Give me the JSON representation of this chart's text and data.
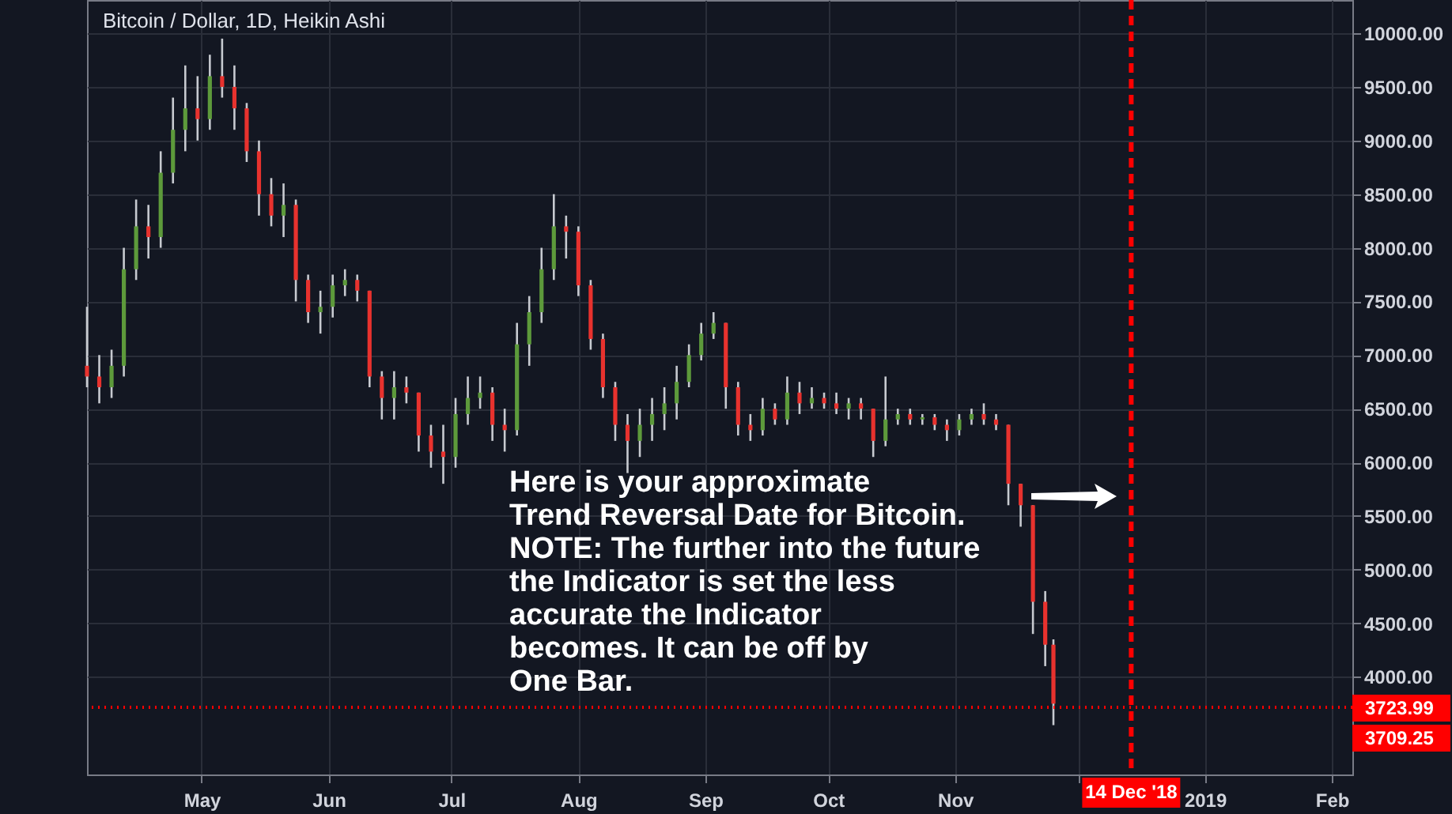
{
  "chart_data": {
    "type": "candlestick",
    "title": "Bitcoin / Dollar, 1D, Heikin Ashi",
    "x": [
      "2018-04-03",
      "2018-04-06",
      "2018-04-09",
      "2018-04-12",
      "2018-04-15",
      "2018-04-18",
      "2018-04-21",
      "2018-04-24",
      "2018-04-27",
      "2018-04-30",
      "2018-05-03",
      "2018-05-06",
      "2018-05-09",
      "2018-05-12",
      "2018-05-15",
      "2018-05-18",
      "2018-05-21",
      "2018-05-24",
      "2018-05-27",
      "2018-05-30",
      "2018-06-02",
      "2018-06-05",
      "2018-06-08",
      "2018-06-11",
      "2018-06-14",
      "2018-06-17",
      "2018-06-20",
      "2018-06-23",
      "2018-06-26",
      "2018-06-29",
      "2018-07-02",
      "2018-07-05",
      "2018-07-08",
      "2018-07-11",
      "2018-07-14",
      "2018-07-17",
      "2018-07-20",
      "2018-07-23",
      "2018-07-26",
      "2018-07-29",
      "2018-08-01",
      "2018-08-04",
      "2018-08-07",
      "2018-08-10",
      "2018-08-13",
      "2018-08-16",
      "2018-08-19",
      "2018-08-22",
      "2018-08-25",
      "2018-08-28",
      "2018-08-31",
      "2018-09-03",
      "2018-09-06",
      "2018-09-09",
      "2018-09-12",
      "2018-09-15",
      "2018-09-18",
      "2018-09-21",
      "2018-09-24",
      "2018-09-27",
      "2018-09-30",
      "2018-10-03",
      "2018-10-06",
      "2018-10-09",
      "2018-10-12",
      "2018-10-15",
      "2018-10-18",
      "2018-10-21",
      "2018-10-24",
      "2018-10-27",
      "2018-10-30",
      "2018-11-02",
      "2018-11-05",
      "2018-11-08",
      "2018-11-11",
      "2018-11-14",
      "2018-11-17",
      "2018-11-20",
      "2018-11-23",
      "2018-11-25"
    ],
    "ohlc": [
      [
        6900,
        7450,
        6700,
        6800
      ],
      [
        6800,
        7000,
        6550,
        6700
      ],
      [
        6700,
        7050,
        6600,
        6900
      ],
      [
        6900,
        8000,
        6800,
        7800
      ],
      [
        7800,
        8450,
        7700,
        8200
      ],
      [
        8200,
        8400,
        7900,
        8100
      ],
      [
        8100,
        8900,
        8000,
        8700
      ],
      [
        8700,
        9400,
        8600,
        9100
      ],
      [
        9100,
        9700,
        8900,
        9300
      ],
      [
        9300,
        9600,
        9000,
        9200
      ],
      [
        9200,
        9800,
        9100,
        9600
      ],
      [
        9600,
        9950,
        9400,
        9500
      ],
      [
        9500,
        9700,
        9100,
        9300
      ],
      [
        9300,
        9350,
        8800,
        8900
      ],
      [
        8900,
        9000,
        8300,
        8500
      ],
      [
        8500,
        8650,
        8200,
        8300
      ],
      [
        8300,
        8600,
        8100,
        8400
      ],
      [
        8400,
        8450,
        7500,
        7700
      ],
      [
        7700,
        7750,
        7300,
        7400
      ],
      [
        7400,
        7600,
        7200,
        7450
      ],
      [
        7450,
        7750,
        7350,
        7650
      ],
      [
        7650,
        7800,
        7550,
        7700
      ],
      [
        7700,
        7750,
        7500,
        7600
      ],
      [
        7600,
        7600,
        6700,
        6800
      ],
      [
        6800,
        6850,
        6400,
        6600
      ],
      [
        6600,
        6850,
        6400,
        6700
      ],
      [
        6700,
        6800,
        6550,
        6650
      ],
      [
        6650,
        6650,
        6100,
        6250
      ],
      [
        6250,
        6350,
        5950,
        6100
      ],
      [
        6100,
        6350,
        5800,
        6050
      ],
      [
        6050,
        6600,
        5950,
        6450
      ],
      [
        6450,
        6800,
        6350,
        6600
      ],
      [
        6600,
        6800,
        6500,
        6650
      ],
      [
        6650,
        6700,
        6200,
        6350
      ],
      [
        6350,
        6500,
        6100,
        6300
      ],
      [
        6300,
        7300,
        6250,
        7100
      ],
      [
        7100,
        7550,
        6900,
        7400
      ],
      [
        7400,
        8000,
        7300,
        7800
      ],
      [
        7800,
        8500,
        7700,
        8200
      ],
      [
        8200,
        8300,
        7900,
        8150
      ],
      [
        8150,
        8200,
        7550,
        7650
      ],
      [
        7650,
        7700,
        7050,
        7150
      ],
      [
        7150,
        7200,
        6600,
        6700
      ],
      [
        6700,
        6750,
        6200,
        6350
      ],
      [
        6350,
        6450,
        5900,
        6200
      ],
      [
        6200,
        6500,
        6050,
        6350
      ],
      [
        6350,
        6600,
        6200,
        6450
      ],
      [
        6450,
        6700,
        6300,
        6550
      ],
      [
        6550,
        6900,
        6400,
        6750
      ],
      [
        6750,
        7100,
        6700,
        7000
      ],
      [
        7000,
        7300,
        6950,
        7200
      ],
      [
        7200,
        7400,
        7150,
        7300
      ],
      [
        7300,
        7300,
        6500,
        6700
      ],
      [
        6700,
        6750,
        6250,
        6350
      ],
      [
        6350,
        6450,
        6200,
        6300
      ],
      [
        6300,
        6600,
        6250,
        6500
      ],
      [
        6500,
        6550,
        6350,
        6400
      ],
      [
        6400,
        6800,
        6350,
        6650
      ],
      [
        6650,
        6750,
        6450,
        6550
      ],
      [
        6550,
        6700,
        6500,
        6600
      ],
      [
        6600,
        6650,
        6500,
        6550
      ],
      [
        6550,
        6650,
        6450,
        6500
      ],
      [
        6500,
        6600,
        6400,
        6550
      ],
      [
        6550,
        6600,
        6400,
        6500
      ],
      [
        6500,
        6500,
        6050,
        6200
      ],
      [
        6200,
        6800,
        6150,
        6400
      ],
      [
        6400,
        6500,
        6350,
        6450
      ],
      [
        6450,
        6500,
        6350,
        6400
      ],
      [
        6400,
        6450,
        6350,
        6420
      ],
      [
        6420,
        6450,
        6300,
        6350
      ],
      [
        6350,
        6400,
        6200,
        6300
      ],
      [
        6300,
        6450,
        6250,
        6400
      ],
      [
        6400,
        6500,
        6350,
        6450
      ],
      [
        6450,
        6550,
        6350,
        6400
      ],
      [
        6400,
        6450,
        6300,
        6350
      ],
      [
        6350,
        6350,
        5600,
        5800
      ],
      [
        5800,
        5800,
        5400,
        5600
      ],
      [
        5600,
        5600,
        4400,
        4700
      ],
      [
        4700,
        4800,
        4100,
        4300
      ],
      [
        4300,
        4350,
        3550,
        3750
      ]
    ],
    "xlim": [
      "2018-04-03",
      "2019-02-06"
    ],
    "xticks": [
      {
        "value": "2018-05-01",
        "label": "May"
      },
      {
        "value": "2018-06-01",
        "label": "Jun"
      },
      {
        "value": "2018-07-01",
        "label": "Jul"
      },
      {
        "value": "2018-08-01",
        "label": "Aug"
      },
      {
        "value": "2018-09-01",
        "label": "Sep"
      },
      {
        "value": "2018-10-01",
        "label": "Oct"
      },
      {
        "value": "2018-11-01",
        "label": "Nov"
      },
      {
        "value": "2018-12-01",
        "label": null
      },
      {
        "value": "2019-01-01",
        "label": "2019"
      },
      {
        "value": "2019-02-01",
        "label": "Feb"
      }
    ],
    "ylim": [
      3090,
      10310
    ],
    "yticks": [
      {
        "value": 4000,
        "label": "4000.00"
      },
      {
        "value": 4500,
        "label": "4500.00"
      },
      {
        "value": 5000,
        "label": "5000.00"
      },
      {
        "value": 5500,
        "label": "5500.00"
      },
      {
        "value": 6000,
        "label": "6000.00"
      },
      {
        "value": 6500,
        "label": "6500.00"
      },
      {
        "value": 7000,
        "label": "7000.00"
      },
      {
        "value": 7500,
        "label": "7500.00"
      },
      {
        "value": 8000,
        "label": "8000.00"
      },
      {
        "value": 8500,
        "label": "8500.00"
      },
      {
        "value": 9000,
        "label": "9000.00"
      },
      {
        "value": 9500,
        "label": "9500.00"
      },
      {
        "value": 10000,
        "label": "10000.00"
      }
    ],
    "grid": true,
    "ref_lines": [
      {
        "axis": "x",
        "value": "2018-12-14",
        "label": "14 Dec '18",
        "color": "#ff0000",
        "line_style": "dashed"
      },
      {
        "axis": "y",
        "value": 3723.99,
        "label": "3723.99",
        "color": "#ff0000",
        "line_style": "dotted"
      },
      {
        "axis": "y",
        "value": 3709.25,
        "label": "3709.25",
        "color": "#ff0000",
        "line_style": "dotted"
      }
    ],
    "annotations": [
      "Here is your approximate\nTrend Reversal Date for Bitcoin.\nNOTE: The further into the future\nthe Indicator is set the less\naccurate the Indicator\nbecomes.  It can be off by\nOne Bar."
    ]
  }
}
